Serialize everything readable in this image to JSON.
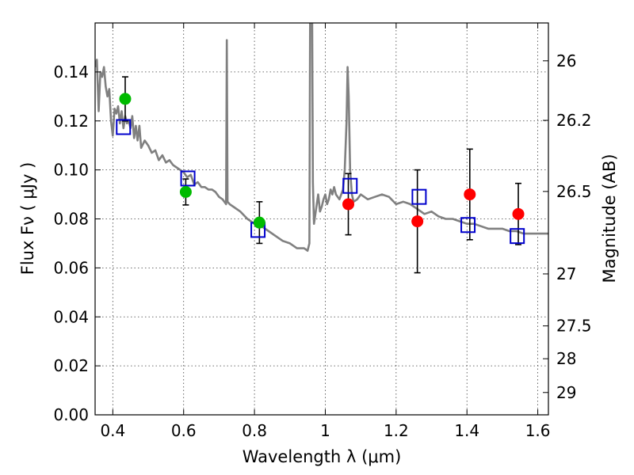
{
  "chart_data": {
    "type": "scatter",
    "title": "",
    "xlabel": "Wavelength  λ (μm)",
    "ylabel": "Flux  Fν  ( μJy )",
    "y2label": "Magnitude (AB)",
    "xlim": [
      0.35,
      1.63
    ],
    "ylim": [
      0.0,
      0.16
    ],
    "grid": true,
    "x_ticks": [
      {
        "value": 0.4,
        "label": "0.4"
      },
      {
        "value": 0.6,
        "label": "0.6"
      },
      {
        "value": 0.8,
        "label": "0.8"
      },
      {
        "value": 1.0,
        "label": "1"
      },
      {
        "value": 1.2,
        "label": "1.2"
      },
      {
        "value": 1.4,
        "label": "1.4"
      },
      {
        "value": 1.6,
        "label": "1.6"
      }
    ],
    "y_ticks": [
      {
        "value": 0.0,
        "label": "0.00"
      },
      {
        "value": 0.02,
        "label": "0.02"
      },
      {
        "value": 0.04,
        "label": "0.04"
      },
      {
        "value": 0.06,
        "label": "0.06"
      },
      {
        "value": 0.08,
        "label": "0.08"
      },
      {
        "value": 0.1,
        "label": "0.10"
      },
      {
        "value": 0.12,
        "label": "0.12"
      },
      {
        "value": 0.14,
        "label": "0.14"
      }
    ],
    "mag_ticks": [
      {
        "value": 26.0,
        "label": "26"
      },
      {
        "value": 26.2,
        "label": "26.2"
      },
      {
        "value": 26.5,
        "label": "26.5"
      },
      {
        "value": 27.0,
        "label": "27"
      },
      {
        "value": 27.5,
        "label": "27.5"
      },
      {
        "value": 28.0,
        "label": "28"
      },
      {
        "value": 29.0,
        "label": "29"
      }
    ],
    "series": [
      {
        "kind": "sed_model_line",
        "color": "#808080",
        "x": [
          0.35,
          0.355,
          0.36,
          0.365,
          0.37,
          0.375,
          0.38,
          0.385,
          0.39,
          0.395,
          0.4,
          0.405,
          0.41,
          0.415,
          0.42,
          0.425,
          0.43,
          0.435,
          0.44,
          0.445,
          0.45,
          0.455,
          0.46,
          0.465,
          0.47,
          0.475,
          0.48,
          0.49,
          0.5,
          0.51,
          0.52,
          0.53,
          0.54,
          0.55,
          0.56,
          0.57,
          0.58,
          0.59,
          0.6,
          0.61,
          0.62,
          0.63,
          0.64,
          0.65,
          0.66,
          0.67,
          0.68,
          0.69,
          0.7,
          0.71,
          0.715,
          0.72,
          0.722,
          0.724,
          0.73,
          0.74,
          0.76,
          0.78,
          0.8,
          0.82,
          0.84,
          0.86,
          0.88,
          0.9,
          0.92,
          0.94,
          0.95,
          0.955,
          0.957,
          0.959,
          0.961,
          0.963,
          0.965,
          0.968,
          0.97,
          0.975,
          0.98,
          0.985,
          0.99,
          0.995,
          1.0,
          1.005,
          1.01,
          1.015,
          1.02,
          1.025,
          1.03,
          1.04,
          1.05,
          1.055,
          1.06,
          1.063,
          1.066,
          1.07,
          1.075,
          1.08,
          1.09,
          1.1,
          1.12,
          1.14,
          1.16,
          1.18,
          1.2,
          1.22,
          1.24,
          1.26,
          1.28,
          1.3,
          1.32,
          1.34,
          1.36,
          1.38,
          1.4,
          1.42,
          1.44,
          1.46,
          1.48,
          1.5,
          1.52,
          1.54,
          1.56,
          1.58,
          1.6,
          1.63
        ],
        "y": [
          0.142,
          0.145,
          0.124,
          0.14,
          0.138,
          0.142,
          0.134,
          0.13,
          0.133,
          0.12,
          0.114,
          0.125,
          0.123,
          0.126,
          0.119,
          0.124,
          0.117,
          0.122,
          0.119,
          0.12,
          0.117,
          0.122,
          0.113,
          0.118,
          0.112,
          0.118,
          0.109,
          0.112,
          0.11,
          0.107,
          0.108,
          0.104,
          0.106,
          0.103,
          0.104,
          0.102,
          0.101,
          0.1,
          0.099,
          0.097,
          0.098,
          0.094,
          0.095,
          0.093,
          0.093,
          0.092,
          0.092,
          0.091,
          0.089,
          0.088,
          0.087,
          0.086,
          0.153,
          0.087,
          0.086,
          0.085,
          0.083,
          0.08,
          0.078,
          0.077,
          0.075,
          0.073,
          0.071,
          0.07,
          0.068,
          0.068,
          0.067,
          0.07,
          0.16,
          0.16,
          0.16,
          0.16,
          0.095,
          0.078,
          0.08,
          0.085,
          0.09,
          0.083,
          0.085,
          0.088,
          0.09,
          0.086,
          0.088,
          0.092,
          0.09,
          0.093,
          0.09,
          0.088,
          0.092,
          0.1,
          0.12,
          0.142,
          0.13,
          0.1,
          0.09,
          0.087,
          0.088,
          0.09,
          0.088,
          0.089,
          0.09,
          0.089,
          0.086,
          0.087,
          0.086,
          0.084,
          0.082,
          0.083,
          0.081,
          0.08,
          0.08,
          0.079,
          0.078,
          0.078,
          0.077,
          0.076,
          0.076,
          0.076,
          0.075,
          0.075,
          0.074,
          0.074,
          0.074,
          0.074
        ]
      },
      {
        "kind": "green_points",
        "color": "#00bb00",
        "points": [
          {
            "x": 0.435,
            "y": 0.129,
            "err": 0.009
          },
          {
            "x": 0.606,
            "y": 0.091,
            "err": 0.0053
          },
          {
            "x": 0.814,
            "y": 0.0785,
            "err": 0.0085
          }
        ]
      },
      {
        "kind": "red_points",
        "color": "#ff0000",
        "points": [
          {
            "x": 1.065,
            "y": 0.086,
            "err": 0.0125
          },
          {
            "x": 1.26,
            "y": 0.079,
            "err": 0.021
          },
          {
            "x": 1.408,
            "y": 0.09,
            "err": 0.0185
          },
          {
            "x": 1.545,
            "y": 0.082,
            "err": 0.0125
          }
        ]
      },
      {
        "kind": "blue_open_squares",
        "color": "#0000cc",
        "points": [
          {
            "x": 0.43,
            "y": 0.1175
          },
          {
            "x": 0.612,
            "y": 0.0965
          },
          {
            "x": 0.81,
            "y": 0.0755
          },
          {
            "x": 1.07,
            "y": 0.0935
          },
          {
            "x": 1.265,
            "y": 0.089
          },
          {
            "x": 1.403,
            "y": 0.0775
          },
          {
            "x": 1.542,
            "y": 0.073
          }
        ]
      }
    ]
  }
}
